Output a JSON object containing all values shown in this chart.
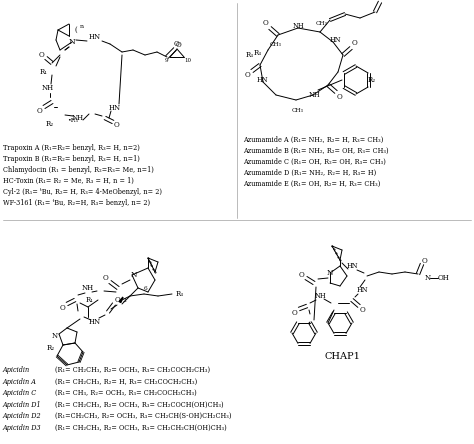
{
  "trapoxin_labels": [
    "Trapoxin A (R₁=R₂= benzyl, R₃= H, n=2)",
    "Trapoxin B (R₁=R₂= benzyl, R₃= H, n=1)",
    "Chlamydocin (R₁ = benzyl, R₂=R₃= Me, n=1)",
    "HC-Toxin (R₁= R₂ = Me, R₃ = H, n = 1)",
    "Cyl-2 (R₁= ᵗBu, R₂= H, R₃= 4-MeObenzyl, n= 2)",
    "WF-3161 (R₁= ᵗBu, R₂=H, R₃= benzyl, n= 2)"
  ],
  "azumamide_labels": [
    "Azumamide A (R₁= NH₂, R₂= H, R₃= CH₃)",
    "Azumamide B (R₁= NH₂, R₂= OH, R₃= CH₃)",
    "Azumamide C (R₁= OH, R₂= OH, R₃= CH₃)",
    "Azumamide D (R₁= NH₂, R₂= H, R₃= H)",
    "Azumamide E (R₁= OH, R₂= H, R₃= CH₃)"
  ],
  "apicidin_labels": [
    [
      "Apicidin",
      "(R₁= CH₂CH₃, R₂= OCH₃, R₃= CH₂COCH₂CH₃)"
    ],
    [
      "Apicidin A",
      "(R₁= CH₂CH₃, R₂= H, R₃= CH₂COCH₂CH₃)"
    ],
    [
      "Apicidin C",
      "(R₁= CH₃, R₂= OCH₃, R₃= CH₂COCH₂CH₃)"
    ],
    [
      "Apicidin D1",
      "(R₁= CH₂CH₃, R₂= OCH₃, R₃= CH₂COCH(OH)CH₃)"
    ],
    [
      "Apicidin D2",
      "(R₁=CH₂CH₃, R₂= OCH₃, R₃= CH₂CH(S-OH)CH₂CH₃)"
    ],
    [
      "Apicidin D3",
      "(R₁= CH₂CH₃, R₂= OCH₃, R₃= CH₂CH₂CH(OH)CH₃)"
    ]
  ],
  "chap1_label": "CHAP1",
  "fig_width": 4.74,
  "fig_height": 4.44,
  "dpi": 100
}
